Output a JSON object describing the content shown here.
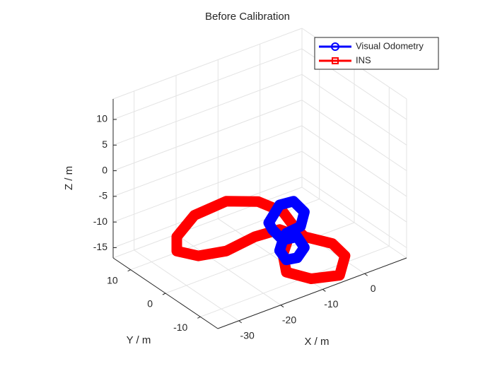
{
  "chart_data": {
    "type": "line3d",
    "title": "Before Calibration",
    "xlabel": "X / m",
    "ylabel": "Y / m",
    "zlabel": "Z / m",
    "xlim": [
      -35,
      10
    ],
    "ylim": [
      -15,
      15
    ],
    "zlim": [
      -17,
      14
    ],
    "xticks": [
      -30,
      -20,
      -10,
      0
    ],
    "yticks": [
      -10,
      0,
      10
    ],
    "zticks": [
      -15,
      -10,
      -5,
      0,
      5,
      10
    ],
    "grid": true,
    "legend_position": "top-right",
    "series": [
      {
        "name": "Visual Odometry",
        "color": "#0000ff",
        "marker": "circle",
        "x": [
          -10.4,
          -7.8,
          -4.5,
          -1.9,
          -2.8,
          -6.2,
          -7.0,
          -3.6,
          -1.9,
          -3.6,
          -6.2,
          -7.8,
          -7.0,
          -9.5,
          -10.4
        ],
        "y": [
          0,
          0,
          0,
          0,
          0,
          0,
          0,
          0,
          0,
          0,
          0,
          0,
          0,
          0,
          0
        ],
        "z": [
          -10.8,
          -8.1,
          -8.4,
          -11.3,
          -13.8,
          -14.1,
          -15.2,
          -15.6,
          -18.2,
          -19.7,
          -19.3,
          -17.0,
          -15.2,
          -12.4,
          -10.8
        ]
      },
      {
        "name": "INS",
        "color": "#ff0000",
        "marker": "square",
        "x": [
          -32.3,
          -28.1,
          -20.5,
          -12.9,
          -7.0,
          -4.5,
          -1.9,
          4.8,
          7.8,
          6.5,
          -0.3,
          -6.2,
          -7.0,
          -5.3,
          -7.8,
          -13.7,
          -20.5,
          -27.2,
          -32.3,
          -32.3
        ],
        "y": [
          0,
          0,
          0,
          0,
          0,
          0,
          0,
          0,
          0,
          0,
          0,
          0,
          0,
          0,
          0,
          0,
          0,
          0,
          0,
          0
        ],
        "z": [
          -6.8,
          -3.9,
          -3.5,
          -5.9,
          -9.7,
          -13.2,
          -16.1,
          -19.5,
          -22.8,
          -26.2,
          -24.8,
          -21.7,
          -18.0,
          -14.4,
          -12.9,
          -12.5,
          -13.2,
          -12.1,
          -9.6,
          -6.8
        ]
      }
    ]
  }
}
